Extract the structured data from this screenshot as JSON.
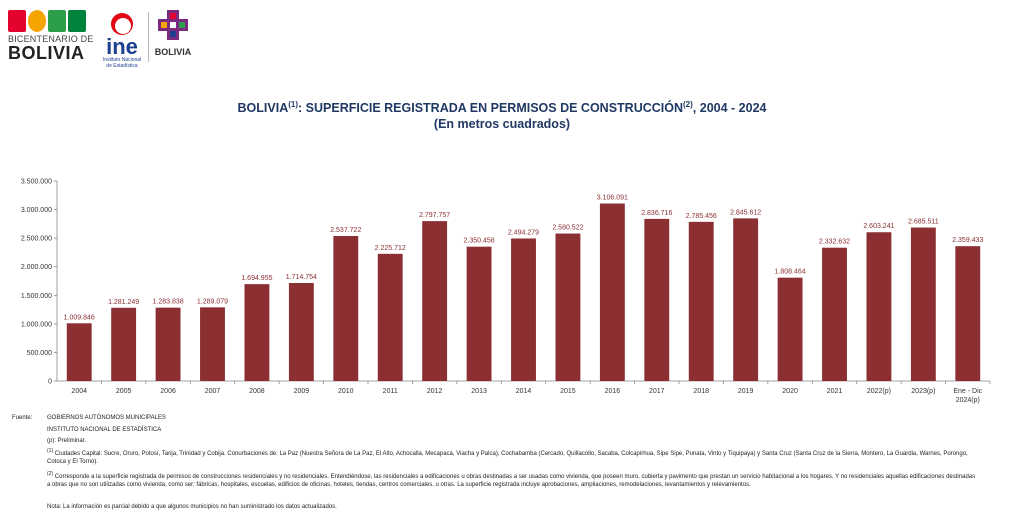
{
  "header": {
    "bicentenario_line1": "BICENTENARIO DE",
    "bicentenario_line2": "BOLIVIA",
    "ine_text": "ine",
    "ine_sub_line1": "Instituto Nacional",
    "ine_sub_line2": "de Estadística",
    "estado_bolivia": "BOLIVIA",
    "colors": {
      "bicentenario_icons": [
        "#e4032e",
        "#f5a400",
        "#2d9e4a",
        "#00843d"
      ],
      "ine_red": "#e30613",
      "ine_blue": "#1c3f8f"
    }
  },
  "chart_data": {
    "type": "bar",
    "title": "BOLIVIA",
    "title_note": "(1)",
    "title_rest": ": SUPERFICIE REGISTRADA EN PERMISOS DE CONSTRUCCIÓN",
    "title_note2": "(2)",
    "title_tail": ", 2004 - 2024",
    "subtitle": "(En metros cuadrados)",
    "categories": [
      "2004",
      "2005",
      "2006",
      "2007",
      "2008",
      "2009",
      "2010",
      "2011",
      "2012",
      "2013",
      "2014",
      "2015",
      "2016",
      "2017",
      "2018",
      "2019",
      "2020",
      "2021",
      "2022(p)",
      "2023(p)",
      "Ene - Dic 2024(p)"
    ],
    "values": [
      1009846,
      1281249,
      1283838,
      1289079,
      1694955,
      1714754,
      2537722,
      2225712,
      2797757,
      2350458,
      2494279,
      2580522,
      3106091,
      2836716,
      2785456,
      2845612,
      1808464,
      2332632,
      2603241,
      2685511,
      2359433
    ],
    "value_labels": [
      "1.009.846",
      "1.281.249",
      "1.283.838",
      "1.289.079",
      "1.694.955",
      "1.714.754",
      "2.537.722",
      "2.225.712",
      "2.797.757",
      "2.350.458",
      "2.494.279",
      "2.580.522",
      "3.106.091",
      "2.836.716",
      "2.785.456",
      "2.845.612",
      "1.808.464",
      "2.332.632",
      "2.603.241",
      "2.685.511",
      "2.359.433"
    ],
    "y_ticks": [
      0,
      500000,
      1000000,
      1500000,
      2000000,
      2500000,
      3000000,
      3500000
    ],
    "y_tick_labels": [
      "0",
      "500.000",
      "1.000.000",
      "1.500.000",
      "2.000.000",
      "2.500.000",
      "3.000.000",
      "3.500.000"
    ],
    "ylim": [
      0,
      3500000
    ],
    "grid": false,
    "legend": "none",
    "bar_color": "#8b2f33",
    "label_color": "#8b2f33"
  },
  "footnotes": {
    "source_label": "Fuente:",
    "source_line1": "GOBIERNOS AUTÓNOMOS MUNICIPALES",
    "source_line2": "INSTITUTO NACIONAL DE ESTADÍSTICA",
    "note_p": "(p): Preliminar.",
    "note_1_mark": "(1)",
    "note_1": " Ciudades Capital: Sucre, Oruro, Potosí, Tarija, Trinidad y Cobija. Conurbaciones de: La Paz (Nuestra Señora de La Paz, El Alto, Achocalla, Mecapaca, Viacha y Palca), Cochabamba (Cercado, Quillacollo, Sacaba, Colcapirhua, Sipe Sipe, Punata, Vinto y Tiquipaya) y Santa Cruz (Santa Cruz de la Sierra, Montero, La Guardia, Warnes, Porongo, Cotoca y El Torno).",
    "note_2_mark": "(2)",
    "note_2": " Corresponde a la superficie registrada de permisos de construcciones residenciales y no residenciales. Entendiéndose, las residenciales a edificaciones u obras destinadas a ser usadas como vivienda, que poseen muro, cubierta y pavimento que prestan un servicio habitacional a los hogares. Y no residenciales aquellas edificaciones destinadas a obras que no son utilizadas como vivienda, como ser: fábricas, hospitales, escuelas, edificios de oficinas, hoteles, tiendas, centros comerciales, u otras. La superficie registrada incluye aprobaciones, ampliaciones, remodelaciones, levantamientos y relevamientos.",
    "note_final": "Nota: La información es parcial debido a que algunos municipios no han suministrado los datos actualizados."
  }
}
